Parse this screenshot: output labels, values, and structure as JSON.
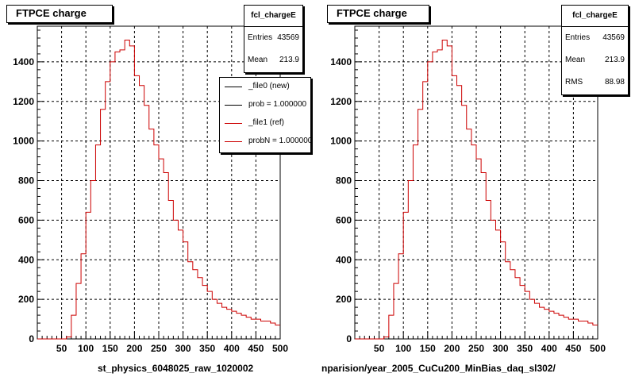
{
  "left": {
    "title": "FTPCE charge",
    "stats": {
      "name": "fcl_chargeE",
      "entries_label": "Entries",
      "entries": "43569",
      "mean_label": "Mean",
      "mean": "213.9"
    },
    "legend": [
      {
        "label": "_file0 (new)",
        "color": "#000000"
      },
      {
        "label": "prob = 1.000000",
        "color": "#000000"
      },
      {
        "label": "_file1 (ref)",
        "color": "#cc0000"
      },
      {
        "label": "probN = 1.000000",
        "color": "#cc0000"
      }
    ],
    "footer": "st_physics_6048025_raw_1020002"
  },
  "right": {
    "title": "FTPCE charge",
    "stats": {
      "name": "fcl_chargeE",
      "entries_label": "Entries",
      "entries": "43569",
      "mean_label": "Mean",
      "mean": "213.9",
      "rms_label": "RMS",
      "rms": "88.98"
    },
    "footer": "nparision/year_2005_CuCu200_MinBias_daq_sl302/"
  },
  "chart_data": [
    {
      "type": "histogram",
      "title": "FTPCE charge",
      "xlim": [
        0,
        500
      ],
      "ylim": [
        0,
        1580
      ],
      "xticks": [
        50,
        100,
        150,
        200,
        250,
        300,
        350,
        400,
        450,
        500
      ],
      "yticks": [
        0,
        200,
        400,
        600,
        800,
        1000,
        1200,
        1400
      ],
      "grid": true,
      "bin_width": 10,
      "line_color": "#cc0000",
      "values": [
        0,
        0,
        0,
        0,
        0,
        0,
        10,
        120,
        280,
        430,
        640,
        800,
        980,
        1160,
        1300,
        1400,
        1450,
        1460,
        1510,
        1480,
        1330,
        1280,
        1180,
        1060,
        980,
        910,
        840,
        700,
        600,
        550,
        490,
        390,
        350,
        310,
        270,
        240,
        200,
        180,
        160,
        150,
        140,
        130,
        120,
        110,
        100,
        100,
        90,
        90,
        80,
        70
      ]
    },
    {
      "type": "histogram",
      "title": "FTPCE charge",
      "xlim": [
        0,
        500
      ],
      "ylim": [
        0,
        1580
      ],
      "xticks": [
        50,
        100,
        150,
        200,
        250,
        300,
        350,
        400,
        450,
        500
      ],
      "yticks": [
        0,
        200,
        400,
        600,
        800,
        1000,
        1200,
        1400
      ],
      "grid": true,
      "bin_width": 10,
      "line_color": "#cc0000",
      "values": [
        0,
        0,
        0,
        0,
        0,
        0,
        10,
        120,
        280,
        430,
        640,
        800,
        980,
        1160,
        1300,
        1400,
        1450,
        1460,
        1510,
        1480,
        1330,
        1280,
        1180,
        1060,
        980,
        910,
        840,
        700,
        600,
        550,
        490,
        390,
        350,
        310,
        270,
        240,
        200,
        180,
        160,
        150,
        140,
        130,
        120,
        110,
        100,
        100,
        90,
        90,
        80,
        70
      ]
    }
  ]
}
